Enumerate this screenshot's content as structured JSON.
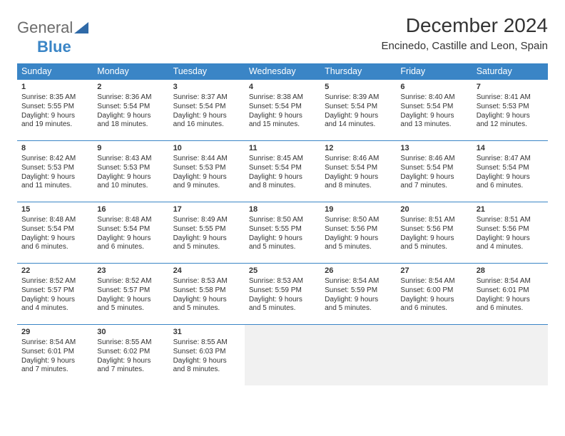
{
  "logo": {
    "text1": "General",
    "text2": "Blue"
  },
  "title": "December 2024",
  "location": "Encinedo, Castille and Leon, Spain",
  "weekdays": [
    "Sunday",
    "Monday",
    "Tuesday",
    "Wednesday",
    "Thursday",
    "Friday",
    "Saturday"
  ],
  "colors": {
    "header_bg": "#3a85c6",
    "header_fg": "#ffffff",
    "border": "#3a85c6",
    "empty_bg": "#f1f1f1",
    "text": "#333333"
  },
  "typography": {
    "title_fontsize": 28,
    "location_fontsize": 15,
    "weekday_fontsize": 12.5,
    "cell_fontsize": 10
  },
  "days": [
    {
      "num": "1",
      "sunrise": "Sunrise: 8:35 AM",
      "sunset": "Sunset: 5:55 PM",
      "day1": "Daylight: 9 hours",
      "day2": "and 19 minutes."
    },
    {
      "num": "2",
      "sunrise": "Sunrise: 8:36 AM",
      "sunset": "Sunset: 5:54 PM",
      "day1": "Daylight: 9 hours",
      "day2": "and 18 minutes."
    },
    {
      "num": "3",
      "sunrise": "Sunrise: 8:37 AM",
      "sunset": "Sunset: 5:54 PM",
      "day1": "Daylight: 9 hours",
      "day2": "and 16 minutes."
    },
    {
      "num": "4",
      "sunrise": "Sunrise: 8:38 AM",
      "sunset": "Sunset: 5:54 PM",
      "day1": "Daylight: 9 hours",
      "day2": "and 15 minutes."
    },
    {
      "num": "5",
      "sunrise": "Sunrise: 8:39 AM",
      "sunset": "Sunset: 5:54 PM",
      "day1": "Daylight: 9 hours",
      "day2": "and 14 minutes."
    },
    {
      "num": "6",
      "sunrise": "Sunrise: 8:40 AM",
      "sunset": "Sunset: 5:54 PM",
      "day1": "Daylight: 9 hours",
      "day2": "and 13 minutes."
    },
    {
      "num": "7",
      "sunrise": "Sunrise: 8:41 AM",
      "sunset": "Sunset: 5:53 PM",
      "day1": "Daylight: 9 hours",
      "day2": "and 12 minutes."
    },
    {
      "num": "8",
      "sunrise": "Sunrise: 8:42 AM",
      "sunset": "Sunset: 5:53 PM",
      "day1": "Daylight: 9 hours",
      "day2": "and 11 minutes."
    },
    {
      "num": "9",
      "sunrise": "Sunrise: 8:43 AM",
      "sunset": "Sunset: 5:53 PM",
      "day1": "Daylight: 9 hours",
      "day2": "and 10 minutes."
    },
    {
      "num": "10",
      "sunrise": "Sunrise: 8:44 AM",
      "sunset": "Sunset: 5:53 PM",
      "day1": "Daylight: 9 hours",
      "day2": "and 9 minutes."
    },
    {
      "num": "11",
      "sunrise": "Sunrise: 8:45 AM",
      "sunset": "Sunset: 5:54 PM",
      "day1": "Daylight: 9 hours",
      "day2": "and 8 minutes."
    },
    {
      "num": "12",
      "sunrise": "Sunrise: 8:46 AM",
      "sunset": "Sunset: 5:54 PM",
      "day1": "Daylight: 9 hours",
      "day2": "and 8 minutes."
    },
    {
      "num": "13",
      "sunrise": "Sunrise: 8:46 AM",
      "sunset": "Sunset: 5:54 PM",
      "day1": "Daylight: 9 hours",
      "day2": "and 7 minutes."
    },
    {
      "num": "14",
      "sunrise": "Sunrise: 8:47 AM",
      "sunset": "Sunset: 5:54 PM",
      "day1": "Daylight: 9 hours",
      "day2": "and 6 minutes."
    },
    {
      "num": "15",
      "sunrise": "Sunrise: 8:48 AM",
      "sunset": "Sunset: 5:54 PM",
      "day1": "Daylight: 9 hours",
      "day2": "and 6 minutes."
    },
    {
      "num": "16",
      "sunrise": "Sunrise: 8:48 AM",
      "sunset": "Sunset: 5:54 PM",
      "day1": "Daylight: 9 hours",
      "day2": "and 6 minutes."
    },
    {
      "num": "17",
      "sunrise": "Sunrise: 8:49 AM",
      "sunset": "Sunset: 5:55 PM",
      "day1": "Daylight: 9 hours",
      "day2": "and 5 minutes."
    },
    {
      "num": "18",
      "sunrise": "Sunrise: 8:50 AM",
      "sunset": "Sunset: 5:55 PM",
      "day1": "Daylight: 9 hours",
      "day2": "and 5 minutes."
    },
    {
      "num": "19",
      "sunrise": "Sunrise: 8:50 AM",
      "sunset": "Sunset: 5:56 PM",
      "day1": "Daylight: 9 hours",
      "day2": "and 5 minutes."
    },
    {
      "num": "20",
      "sunrise": "Sunrise: 8:51 AM",
      "sunset": "Sunset: 5:56 PM",
      "day1": "Daylight: 9 hours",
      "day2": "and 5 minutes."
    },
    {
      "num": "21",
      "sunrise": "Sunrise: 8:51 AM",
      "sunset": "Sunset: 5:56 PM",
      "day1": "Daylight: 9 hours",
      "day2": "and 4 minutes."
    },
    {
      "num": "22",
      "sunrise": "Sunrise: 8:52 AM",
      "sunset": "Sunset: 5:57 PM",
      "day1": "Daylight: 9 hours",
      "day2": "and 4 minutes."
    },
    {
      "num": "23",
      "sunrise": "Sunrise: 8:52 AM",
      "sunset": "Sunset: 5:57 PM",
      "day1": "Daylight: 9 hours",
      "day2": "and 5 minutes."
    },
    {
      "num": "24",
      "sunrise": "Sunrise: 8:53 AM",
      "sunset": "Sunset: 5:58 PM",
      "day1": "Daylight: 9 hours",
      "day2": "and 5 minutes."
    },
    {
      "num": "25",
      "sunrise": "Sunrise: 8:53 AM",
      "sunset": "Sunset: 5:59 PM",
      "day1": "Daylight: 9 hours",
      "day2": "and 5 minutes."
    },
    {
      "num": "26",
      "sunrise": "Sunrise: 8:54 AM",
      "sunset": "Sunset: 5:59 PM",
      "day1": "Daylight: 9 hours",
      "day2": "and 5 minutes."
    },
    {
      "num": "27",
      "sunrise": "Sunrise: 8:54 AM",
      "sunset": "Sunset: 6:00 PM",
      "day1": "Daylight: 9 hours",
      "day2": "and 6 minutes."
    },
    {
      "num": "28",
      "sunrise": "Sunrise: 8:54 AM",
      "sunset": "Sunset: 6:01 PM",
      "day1": "Daylight: 9 hours",
      "day2": "and 6 minutes."
    },
    {
      "num": "29",
      "sunrise": "Sunrise: 8:54 AM",
      "sunset": "Sunset: 6:01 PM",
      "day1": "Daylight: 9 hours",
      "day2": "and 7 minutes."
    },
    {
      "num": "30",
      "sunrise": "Sunrise: 8:55 AM",
      "sunset": "Sunset: 6:02 PM",
      "day1": "Daylight: 9 hours",
      "day2": "and 7 minutes."
    },
    {
      "num": "31",
      "sunrise": "Sunrise: 8:55 AM",
      "sunset": "Sunset: 6:03 PM",
      "day1": "Daylight: 9 hours",
      "day2": "and 8 minutes."
    }
  ],
  "grid": {
    "rows": 5,
    "cols": 7,
    "start_offset": 0,
    "total_days": 31
  }
}
